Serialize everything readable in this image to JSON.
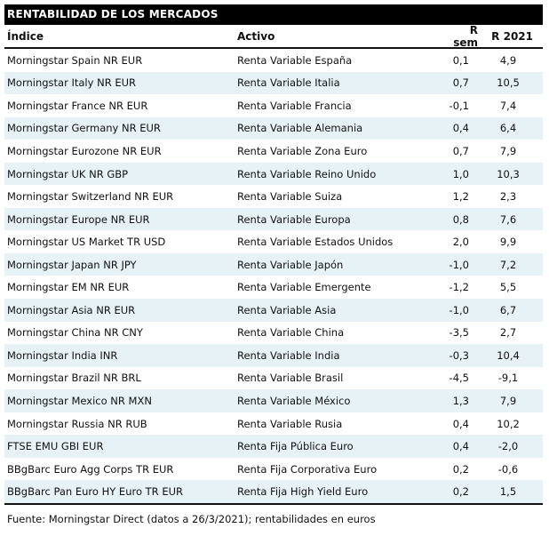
{
  "title": "RENTABILIDAD DE LOS MERCADOS",
  "columns": {
    "indice": "Índice",
    "activo": "Activo",
    "r_sem": "R sem",
    "r_2021": "R 2021"
  },
  "rows": [
    {
      "indice": "Morningstar Spain NR EUR",
      "activo": "Renta Variable España",
      "r_sem": "0,1",
      "r_2021": "4,9"
    },
    {
      "indice": "Morningstar Italy NR EUR",
      "activo": "Renta Variable Italia",
      "r_sem": "0,7",
      "r_2021": "10,5"
    },
    {
      "indice": "Morningstar France NR EUR",
      "activo": "Renta Variable Francia",
      "r_sem": "-0,1",
      "r_2021": "7,4"
    },
    {
      "indice": "Morningstar Germany NR EUR",
      "activo": "Renta Variable Alemania",
      "r_sem": "0,4",
      "r_2021": "6,4"
    },
    {
      "indice": "Morningstar Eurozone NR EUR",
      "activo": "Renta Variable Zona Euro",
      "r_sem": "0,7",
      "r_2021": "7,9"
    },
    {
      "indice": "Morningstar UK NR GBP",
      "activo": "Renta Variable Reino Unido",
      "r_sem": "1,0",
      "r_2021": "10,3"
    },
    {
      "indice": "Morningstar Switzerland NR EUR",
      "activo": "Renta Variable Suiza",
      "r_sem": "1,2",
      "r_2021": "2,3"
    },
    {
      "indice": "Morningstar Europe NR EUR",
      "activo": "Renta Variable Europa",
      "r_sem": "0,8",
      "r_2021": "7,6"
    },
    {
      "indice": "Morningstar US Market TR USD",
      "activo": "Renta Variable Estados Unidos",
      "r_sem": "2,0",
      "r_2021": "9,9"
    },
    {
      "indice": "Morningstar Japan NR JPY",
      "activo": "Renta Variable Japón",
      "r_sem": "-1,0",
      "r_2021": "7,2"
    },
    {
      "indice": "Morningstar EM NR EUR",
      "activo": "Renta Variable Emergente",
      "r_sem": "-1,2",
      "r_2021": "5,5"
    },
    {
      "indice": "Morningstar Asia NR EUR",
      "activo": "Renta Variable Asia",
      "r_sem": "-1,0",
      "r_2021": "6,7"
    },
    {
      "indice": "Morningstar China NR CNY",
      "activo": "Renta Variable China",
      "r_sem": "-3,5",
      "r_2021": "2,7"
    },
    {
      "indice": "Morningstar India INR",
      "activo": "Renta Variable India",
      "r_sem": "-0,3",
      "r_2021": "10,4"
    },
    {
      "indice": "Morningstar Brazil NR BRL",
      "activo": "Renta Variable Brasil",
      "r_sem": "-4,5",
      "r_2021": "-9,1"
    },
    {
      "indice": "Morningstar Mexico NR MXN",
      "activo": "Renta Variable México",
      "r_sem": "1,3",
      "r_2021": "7,9"
    },
    {
      "indice": "Morningstar Russia NR RUB",
      "activo": "Renta Variable Rusia",
      "r_sem": "0,4",
      "r_2021": "10,2"
    },
    {
      "indice": "FTSE EMU GBI EUR",
      "activo": "Renta Fija Pública Euro",
      "r_sem": "0,4",
      "r_2021": "-2,0"
    },
    {
      "indice": "BBgBarc Euro Agg Corps TR EUR",
      "activo": "Renta Fija Corporativa Euro",
      "r_sem": "0,2",
      "r_2021": "-0,6"
    },
    {
      "indice": "BBgBarc Pan Euro HY Euro TR EUR",
      "activo": "Renta Fija High Yield Euro",
      "r_sem": "0,2",
      "r_2021": "1,5"
    }
  ],
  "footer": "Fuente: Morningstar Direct (datos a 26/3/2021); rentabilidades en euros",
  "colors": {
    "header_bg": "#000000",
    "header_text": "#ffffff",
    "row_alt": "#e7f2f6",
    "rule": "#111111",
    "text": "#111111"
  }
}
